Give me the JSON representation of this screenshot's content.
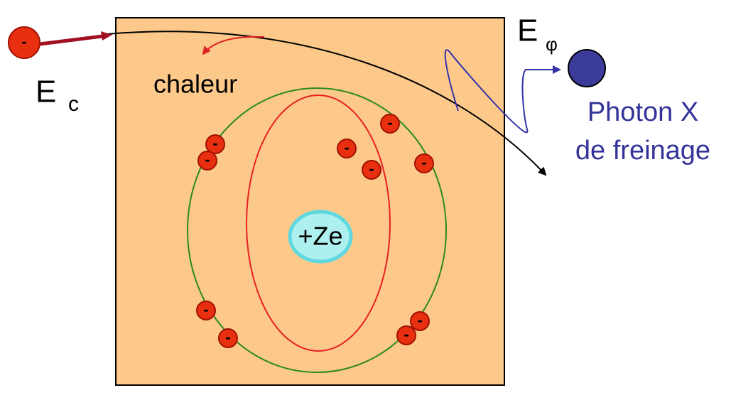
{
  "incident_electron": "-",
  "atom_electron": "-",
  "kinetic_energy": {
    "symbol": "E",
    "subscript": "c"
  },
  "heat_label": "chaleur",
  "nucleus_label": "+Ze",
  "photon_energy": {
    "symbol": "E",
    "subscript": "φ"
  },
  "photon_label": {
    "line1": "Photon X",
    "line2": "de freinage"
  }
}
